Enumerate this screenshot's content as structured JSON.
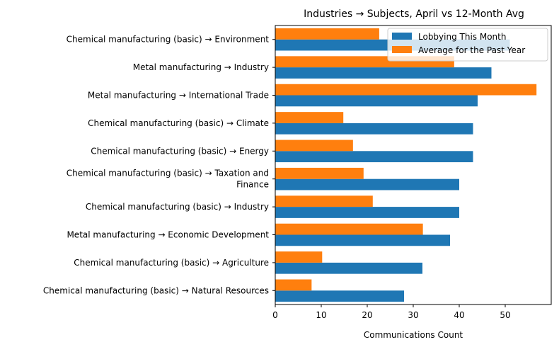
{
  "chart_data": {
    "type": "bar",
    "orientation": "horizontal",
    "title": "Industries → Subjects, April vs 12-Month Avg",
    "xlabel": "Communications Count",
    "ylabel": "",
    "xlim": [
      0,
      60
    ],
    "xticks": [
      0,
      10,
      20,
      30,
      40,
      50
    ],
    "grid": false,
    "legend_position": "top-right",
    "categories": [
      "Chemical manufacturing (basic) → Environment",
      "Metal manufacturing → Industry",
      "Metal manufacturing → International Trade",
      "Chemical manufacturing (basic) → Climate",
      "Chemical manufacturing (basic) → Energy",
      "Chemical manufacturing (basic) → Taxation and Finance",
      "Chemical manufacturing (basic) → Industry",
      "Metal manufacturing → Economic Development",
      "Chemical manufacturing (basic) → Agriculture",
      "Chemical manufacturing (basic) → Natural Resources"
    ],
    "category_display_lines": [
      [
        "Chemical manufacturing (basic) → Environment"
      ],
      [
        "Metal manufacturing → Industry"
      ],
      [
        "Metal manufacturing → International Trade"
      ],
      [
        "Chemical manufacturing (basic) → Climate"
      ],
      [
        "Chemical manufacturing (basic) → Energy"
      ],
      [
        "Chemical manufacturing (basic) → Taxation and",
        "Finance"
      ],
      [
        "Chemical manufacturing (basic) → Industry"
      ],
      [
        "Metal manufacturing → Economic Development"
      ],
      [
        "Chemical manufacturing (basic) → Agriculture"
      ],
      [
        "Chemical manufacturing (basic) → Natural Resources"
      ]
    ],
    "series": [
      {
        "name": "Lobbying This Month",
        "color": "#1f77b4",
        "values": [
          51,
          47,
          44,
          43,
          43,
          40,
          40,
          38,
          32,
          28
        ]
      },
      {
        "name": "Average for the Past Year",
        "color": "#ff7f0e",
        "values": [
          22.6,
          38.9,
          56.8,
          14.8,
          16.9,
          19.2,
          21.2,
          32.1,
          10.2,
          7.9
        ]
      }
    ]
  }
}
